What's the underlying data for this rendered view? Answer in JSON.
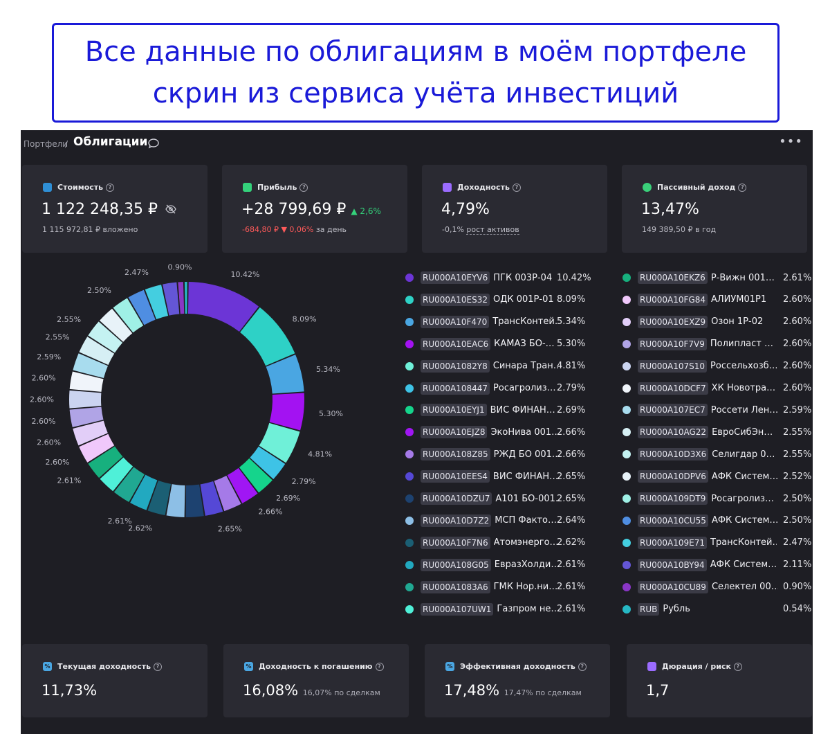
{
  "banner": {
    "line1": "Все данные по облигациям в моём портфеле",
    "line2": "скрин из сервиса учёта инвестиций"
  },
  "breadcrumb": {
    "parent": "Портфели",
    "separator": "/",
    "title": "Облигации"
  },
  "cards": [
    {
      "label": "Стоимость",
      "icon": "wallet-icon",
      "icon_color": "#2f8fd6",
      "value": "1 122 248,35 ₽",
      "sub": "1 115 972,81 ₽ вложено"
    },
    {
      "label": "Прибыль",
      "icon": "chart-icon",
      "icon_color": "#34d27b",
      "value": "+28 799,69 ₽",
      "delta_up": "▲ 2,6%",
      "sub_neg": "-684,80 ₽",
      "sub_neg_pct": "▼ 0,06%",
      "sub_tail": "за день"
    },
    {
      "label": "Доходность",
      "icon": "calendar-icon",
      "icon_color": "#9b6cff",
      "value": "4,79%",
      "sub_a": "-0,1%",
      "sub_b": "рост активов"
    },
    {
      "label": "Пассивный доход",
      "icon": "piggy-icon",
      "icon_color": "#3ad07a",
      "value": "13,47%",
      "sub": "149 389,50 ₽ в год"
    }
  ],
  "chart_data": {
    "type": "pie",
    "donut": true,
    "categories": [
      "RU000A10EYV6",
      "RU000A10ES32",
      "RU000A10F470",
      "RU000A10EAC6",
      "RU000A1082Y8",
      "RU000A108447",
      "RU000A10EYJ1",
      "RU000A10EJZ8",
      "RU000A108Z85",
      "RU000A10EES4",
      "RU000A10DZU7",
      "RU000A10D7Z2",
      "RU000A10F7N6",
      "RU000A108G05",
      "RU000A1083A6",
      "RU000A107UW1",
      "RU000A10EKZ6",
      "RU000A10FG84",
      "RU000A10EXZ9",
      "RU000A10F7V9",
      "RU000A107S10",
      "RU000A10DCF7",
      "RU000A107EC7",
      "RU000A10AG22",
      "RU000A10D3X6",
      "RU000A10DPV6",
      "RU000A109DT9",
      "RU000A10CU55",
      "RU000A109E71",
      "RU000A10BY94",
      "RU000A10CU89",
      "RUB"
    ],
    "values": [
      10.42,
      8.09,
      5.34,
      5.3,
      4.81,
      2.79,
      2.69,
      2.66,
      2.66,
      2.65,
      2.65,
      2.64,
      2.62,
      2.61,
      2.61,
      2.61,
      2.61,
      2.6,
      2.6,
      2.6,
      2.6,
      2.6,
      2.59,
      2.55,
      2.55,
      2.52,
      2.5,
      2.5,
      2.47,
      2.11,
      0.9,
      0.54
    ],
    "data_labels": [
      "10.42%",
      "8.09%",
      "5.34%",
      "5.30%",
      "4.81%",
      "2.79%",
      "2.69%",
      "2.66%",
      "",
      "2.65%",
      "",
      "",
      "2.62%",
      "2.61%",
      "",
      "",
      "2.61%",
      "2.60%",
      "2.60%",
      "2.60%",
      "2.60%",
      "2.60%",
      "2.59%",
      "2.55%",
      "2.55%",
      "",
      "2.50%",
      "",
      "2.47%",
      "",
      "0.90%",
      ""
    ],
    "colors": [
      "#6c35d6",
      "#2ed1c6",
      "#4aa6e2",
      "#a312f2",
      "#6ff0d8",
      "#3ec3e6",
      "#15d48c",
      "#a016f4",
      "#a57ae8",
      "#5548d6",
      "#1d4270",
      "#8dbfe6",
      "#1b5f74",
      "#22a9c0",
      "#20a892",
      "#4ff0d8",
      "#17b07e",
      "#f0c8fb",
      "#e2cef8",
      "#b0a4e6",
      "#cbd4f0",
      "#f0f4fa",
      "#a8dcee",
      "#d6eff4",
      "#c4f2f2",
      "#e8f2f8",
      "#9ff0e6",
      "#4f8ee2",
      "#44cee0",
      "#6456d6",
      "#8a36c6",
      "#26b8c4"
    ]
  },
  "legend": [
    {
      "code": "RU000A10EYV6",
      "name": "ПГК 003Р-04",
      "pct": "10.42%"
    },
    {
      "code": "RU000A10ES32",
      "name": "ОДК 001Р-01",
      "pct": "8.09%"
    },
    {
      "code": "RU000A10F470",
      "name": "ТрансКонтей…",
      "pct": "5.34%"
    },
    {
      "code": "RU000A10EAC6",
      "name": "КАМАЗ БО-…",
      "pct": "5.30%"
    },
    {
      "code": "RU000A1082Y8",
      "name": "Синара Тран…",
      "pct": "4.81%"
    },
    {
      "code": "RU000A108447",
      "name": "Росагролиз…",
      "pct": "2.79%"
    },
    {
      "code": "RU000A10EYJ1",
      "name": "ВИС ФИНАН…",
      "pct": "2.69%"
    },
    {
      "code": "RU000A10EJZ8",
      "name": "ЭкоНива 001…",
      "pct": "2.66%"
    },
    {
      "code": "RU000A108Z85",
      "name": "РЖД БО 001…",
      "pct": "2.66%"
    },
    {
      "code": "RU000A10EES4",
      "name": "ВИС ФИНАН…",
      "pct": "2.65%"
    },
    {
      "code": "RU000A10DZU7",
      "name": "А101 БО-001…",
      "pct": "2.65%"
    },
    {
      "code": "RU000A10D7Z2",
      "name": "МСП Факто…",
      "pct": "2.64%"
    },
    {
      "code": "RU000A10F7N6",
      "name": "Атомэнерго…",
      "pct": "2.62%"
    },
    {
      "code": "RU000A108G05",
      "name": "ЕвразХолди…",
      "pct": "2.61%"
    },
    {
      "code": "RU000A1083A6",
      "name": "ГМК Нор.ни…",
      "pct": "2.61%"
    },
    {
      "code": "RU000A107UW1",
      "name": "Газпром не…",
      "pct": "2.61%"
    },
    {
      "code": "RU000A10EKZ6",
      "name": "Р-Вижн 001…",
      "pct": "2.61%"
    },
    {
      "code": "RU000A10FG84",
      "name": "АЛИУМ01Р1",
      "pct": "2.60%"
    },
    {
      "code": "RU000A10EXZ9",
      "name": "Озон 1Р-02",
      "pct": "2.60%"
    },
    {
      "code": "RU000A10F7V9",
      "name": "Полипласт …",
      "pct": "2.60%"
    },
    {
      "code": "RU000A107S10",
      "name": "Россельхозб…",
      "pct": "2.60%"
    },
    {
      "code": "RU000A10DCF7",
      "name": "ХК Новотра…",
      "pct": "2.60%"
    },
    {
      "code": "RU000A107EC7",
      "name": "Россети Лен…",
      "pct": "2.59%"
    },
    {
      "code": "RU000A10AG22",
      "name": "ЕвроСибЭн…",
      "pct": "2.55%"
    },
    {
      "code": "RU000A10D3X6",
      "name": "Селигдар 0…",
      "pct": "2.55%"
    },
    {
      "code": "RU000A10DPV6",
      "name": "АФК Систем…",
      "pct": "2.52%"
    },
    {
      "code": "RU000A109DT9",
      "name": "Росагролиз…",
      "pct": "2.50%"
    },
    {
      "code": "RU000A10CU55",
      "name": "АФК Систем…",
      "pct": "2.50%"
    },
    {
      "code": "RU000A109E71",
      "name": "ТрансКонтей…",
      "pct": "2.47%"
    },
    {
      "code": "RU000A10BY94",
      "name": "АФК Систем…",
      "pct": "2.11%"
    },
    {
      "code": "RU000A10CU89",
      "name": "Селектел 00…",
      "pct": "0.90%"
    },
    {
      "code": "RUB",
      "name": "Рубль",
      "pct": "0.54%"
    }
  ],
  "metrics": [
    {
      "label": "Текущая доходность",
      "icon": "percent-icon",
      "icon_color": "#4aa6e2",
      "value": "11,73%",
      "small": ""
    },
    {
      "label": "Доходность к погашению",
      "icon": "percent-icon",
      "icon_color": "#4aa6e2",
      "value": "16,08%",
      "small": "16,07% по сделкам"
    },
    {
      "label": "Эффективная доходность",
      "icon": "percent-icon",
      "icon_color": "#4aa6e2",
      "value": "17,48%",
      "small": "17,47% по сделкам"
    },
    {
      "label": "Дюрация / риск",
      "icon": "calendar-icon",
      "icon_color": "#9b6cff",
      "value": "1,7",
      "small": ""
    }
  ]
}
